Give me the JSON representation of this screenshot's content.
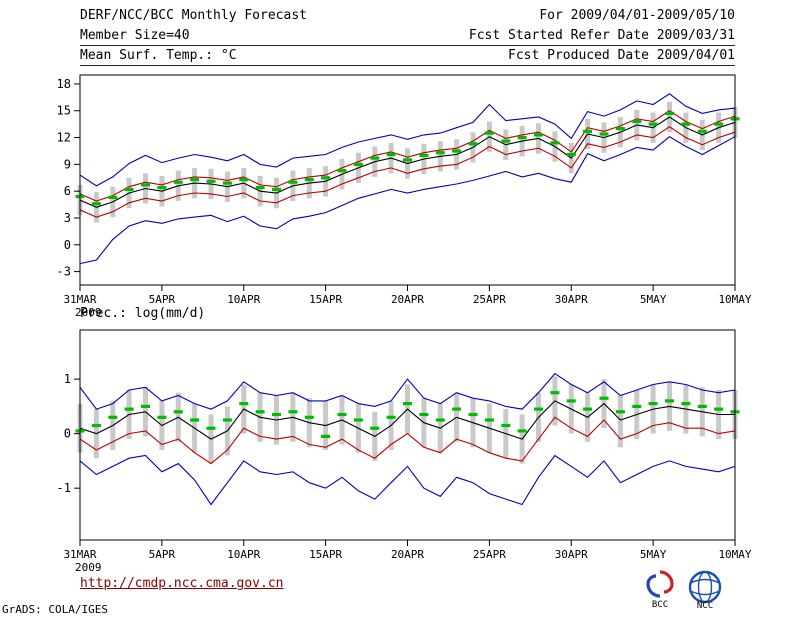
{
  "header": {
    "title": "DERF/NCC/BCC Monthly Forecast",
    "member_size": "Member Size=40",
    "for_range": "For 2009/04/01-2009/05/10",
    "refer_date": "Fcst Started Refer Date 2009/03/31",
    "produced_date": "Fcst Produced Date 2009/04/01"
  },
  "footer": {
    "url": "http://cmdp.ncc.cma.gov.cn",
    "grads_credit": "GrADS: COLA/IGES",
    "logos": [
      {
        "label": "BCC"
      },
      {
        "label": "NCC"
      }
    ]
  },
  "colors": {
    "envelope_line": "#0000bb",
    "quartile_line": "#bb0000",
    "mean_line": "#000000",
    "obs_marker": "#00bb00",
    "spread_bar": "#c9c9c9",
    "url_text": "#8b0000",
    "frame": "#000000"
  },
  "chart_data": [
    {
      "type": "line",
      "name": "temperature-chart",
      "title": "Mean Surf. Temp.: °C",
      "x_tick_labels": [
        "31MAR",
        "5APR",
        "10APR",
        "15APR",
        "20APR",
        "25APR",
        "30APR",
        "5MAY",
        "10MAY"
      ],
      "x_tick_days": [
        0,
        5,
        10,
        15,
        20,
        25,
        30,
        35,
        40
      ],
      "x_sub_label": "2009",
      "ylim": [
        -4.5,
        19.0
      ],
      "yticks": [
        -3,
        0,
        3,
        6,
        9,
        12,
        15,
        18
      ],
      "grid": "off",
      "series": [
        {
          "name": "ensemble-max",
          "color": "#0000bb",
          "values": [
            7.8,
            6.6,
            7.6,
            9.1,
            10.0,
            9.2,
            9.7,
            10.1,
            9.8,
            9.4,
            10.1,
            9.0,
            8.7,
            9.7,
            9.9,
            10.1,
            10.9,
            11.5,
            11.9,
            12.3,
            11.8,
            12.3,
            12.5,
            13.1,
            13.7,
            15.7,
            13.9,
            14.1,
            14.3,
            13.5,
            11.9,
            14.9,
            14.4,
            15.1,
            16.1,
            15.7,
            16.9,
            15.5,
            14.7,
            15.1,
            15.3
          ]
        },
        {
          "name": "upper-spread",
          "color": "#bb0000",
          "values": [
            5.7,
            4.9,
            5.5,
            6.5,
            7.0,
            6.7,
            7.3,
            7.6,
            7.5,
            7.2,
            7.6,
            6.7,
            6.5,
            7.3,
            7.6,
            7.8,
            8.6,
            9.3,
            10.0,
            10.4,
            9.8,
            10.3,
            10.6,
            10.8,
            11.6,
            12.8,
            11.9,
            12.3,
            12.6,
            11.7,
            10.4,
            13.1,
            12.7,
            13.3,
            14.1,
            13.8,
            15.0,
            13.8,
            13.0,
            13.8,
            14.4
          ]
        },
        {
          "name": "ensemble-mean",
          "color": "#000000",
          "values": [
            5.0,
            4.2,
            4.8,
            5.8,
            6.3,
            6.0,
            6.6,
            6.9,
            6.8,
            6.5,
            6.9,
            6.0,
            5.8,
            6.6,
            6.9,
            7.1,
            7.9,
            8.6,
            9.3,
            9.7,
            9.1,
            9.6,
            9.9,
            10.1,
            10.9,
            12.1,
            11.2,
            11.6,
            11.9,
            11.0,
            9.7,
            12.4,
            12.0,
            12.6,
            13.4,
            13.1,
            14.3,
            13.1,
            12.3,
            13.1,
            13.7
          ]
        },
        {
          "name": "lower-spread",
          "color": "#bb0000",
          "values": [
            3.9,
            3.1,
            3.7,
            4.7,
            5.2,
            4.9,
            5.5,
            5.8,
            5.7,
            5.4,
            5.8,
            4.9,
            4.7,
            5.5,
            5.8,
            6.0,
            6.8,
            7.5,
            8.2,
            8.6,
            8.0,
            8.5,
            8.8,
            9.0,
            9.8,
            11.0,
            10.1,
            10.5,
            10.8,
            9.9,
            8.6,
            11.3,
            10.9,
            11.5,
            12.3,
            12.0,
            13.2,
            12.0,
            11.2,
            12.0,
            12.6
          ]
        },
        {
          "name": "ensemble-min",
          "color": "#0000bb",
          "values": [
            -2.1,
            -1.7,
            0.6,
            2.1,
            2.7,
            2.4,
            2.9,
            3.1,
            3.3,
            2.6,
            3.2,
            2.1,
            1.8,
            2.9,
            3.2,
            3.6,
            4.4,
            5.2,
            5.7,
            6.2,
            5.8,
            6.2,
            6.5,
            6.8,
            7.2,
            7.7,
            8.2,
            7.6,
            8.0,
            7.4,
            7.0,
            10.2,
            9.4,
            10.1,
            10.9,
            10.6,
            12.1,
            11.0,
            10.1,
            11.1,
            12.1
          ]
        }
      ],
      "markers": {
        "name": "observation-dash",
        "color": "#00bb00",
        "values": [
          5.4,
          4.6,
          5.3,
          6.2,
          6.7,
          6.4,
          7.0,
          7.3,
          7.1,
          6.9,
          7.3,
          6.4,
          6.2,
          7.0,
          7.3,
          7.5,
          8.3,
          9.0,
          9.7,
          10.1,
          9.5,
          10.0,
          10.3,
          10.5,
          11.3,
          12.5,
          11.6,
          12.0,
          12.3,
          11.4,
          10.1,
          12.7,
          12.4,
          13.0,
          13.8,
          13.5,
          14.7,
          13.5,
          12.7,
          13.5,
          14.1
        ]
      },
      "bars": {
        "name": "ensemble-spread-bar",
        "color": "#c9c9c9",
        "hi": [
          6.7,
          5.9,
          6.5,
          7.5,
          8.0,
          7.7,
          8.3,
          8.6,
          8.5,
          8.2,
          8.6,
          7.7,
          7.5,
          8.3,
          8.6,
          8.8,
          9.6,
          10.3,
          11.0,
          11.4,
          10.8,
          11.3,
          11.6,
          11.8,
          12.6,
          13.8,
          12.9,
          13.3,
          13.6,
          12.7,
          11.4,
          14.1,
          13.7,
          14.3,
          15.1,
          14.8,
          16.0,
          14.8,
          14.0,
          14.8,
          15.4
        ],
        "lo": [
          3.3,
          2.5,
          3.1,
          4.1,
          4.6,
          4.3,
          4.9,
          5.2,
          5.1,
          4.8,
          5.2,
          4.3,
          4.1,
          4.9,
          5.2,
          5.4,
          6.2,
          6.9,
          7.6,
          8.0,
          7.4,
          7.9,
          8.2,
          8.4,
          9.2,
          10.4,
          9.5,
          9.9,
          10.2,
          9.3,
          8.0,
          10.7,
          10.3,
          10.9,
          11.7,
          11.4,
          12.6,
          11.4,
          10.6,
          11.4,
          12.0
        ]
      }
    },
    {
      "type": "line",
      "name": "precipitation-chart",
      "title": "Prec.: log(mm/d)",
      "x_tick_labels": [
        "31MAR",
        "5APR",
        "10APR",
        "15APR",
        "20APR",
        "25APR",
        "30APR",
        "5MAY",
        "10MAY"
      ],
      "x_tick_days": [
        0,
        5,
        10,
        15,
        20,
        25,
        30,
        35,
        40
      ],
      "x_sub_label": "2009",
      "ylim": [
        -1.95,
        1.9
      ],
      "yticks": [
        -1,
        0,
        1
      ],
      "grid": "off",
      "series": [
        {
          "name": "ensemble-max",
          "color": "#0000bb",
          "values": [
            0.85,
            0.45,
            0.55,
            0.8,
            0.85,
            0.6,
            0.7,
            0.55,
            0.45,
            0.6,
            0.95,
            0.75,
            0.7,
            0.75,
            0.6,
            0.6,
            0.7,
            0.55,
            0.5,
            0.6,
            1.0,
            0.65,
            0.55,
            0.75,
            0.65,
            0.6,
            0.5,
            0.45,
            0.75,
            1.1,
            0.9,
            0.75,
            0.95,
            0.7,
            0.8,
            0.9,
            0.95,
            0.9,
            0.8,
            0.75,
            0.8
          ]
        },
        {
          "name": "ensemble-mean",
          "color": "#000000",
          "values": [
            0.1,
            0.0,
            0.15,
            0.35,
            0.4,
            0.15,
            0.3,
            0.1,
            -0.1,
            0.05,
            0.45,
            0.3,
            0.25,
            0.3,
            0.2,
            0.15,
            0.25,
            0.1,
            -0.05,
            0.15,
            0.45,
            0.2,
            0.1,
            0.3,
            0.2,
            0.1,
            0.0,
            -0.1,
            0.3,
            0.6,
            0.45,
            0.3,
            0.55,
            0.25,
            0.35,
            0.45,
            0.5,
            0.45,
            0.4,
            0.35,
            0.35
          ]
        },
        {
          "name": "lower-spread",
          "color": "#bb0000",
          "values": [
            -0.1,
            -0.3,
            -0.15,
            0.0,
            0.05,
            -0.2,
            -0.1,
            -0.35,
            -0.55,
            -0.3,
            0.1,
            -0.05,
            -0.1,
            -0.05,
            -0.2,
            -0.25,
            -0.1,
            -0.3,
            -0.45,
            -0.2,
            0.0,
            -0.25,
            -0.35,
            -0.1,
            -0.2,
            -0.35,
            -0.45,
            -0.5,
            -0.1,
            0.3,
            0.1,
            -0.05,
            0.25,
            -0.1,
            0.0,
            0.15,
            0.2,
            0.1,
            0.1,
            0.0,
            0.05
          ]
        },
        {
          "name": "ensemble-min",
          "color": "#0000bb",
          "values": [
            -0.5,
            -0.75,
            -0.6,
            -0.45,
            -0.4,
            -0.7,
            -0.55,
            -0.85,
            -1.3,
            -0.9,
            -0.5,
            -0.7,
            -0.75,
            -0.7,
            -0.9,
            -1.0,
            -0.8,
            -1.05,
            -1.2,
            -0.9,
            -0.6,
            -1.0,
            -1.15,
            -0.8,
            -0.9,
            -1.1,
            -1.2,
            -1.3,
            -0.8,
            -0.4,
            -0.6,
            -0.8,
            -0.5,
            -0.9,
            -0.75,
            -0.6,
            -0.5,
            -0.6,
            -0.65,
            -0.7,
            -0.6
          ]
        }
      ],
      "markers": {
        "name": "observation-dash",
        "color": "#00bb00",
        "values": [
          0.05,
          0.15,
          0.3,
          0.45,
          0.5,
          0.3,
          0.4,
          0.25,
          0.1,
          0.25,
          0.55,
          0.4,
          0.35,
          0.4,
          0.3,
          -0.05,
          0.35,
          0.25,
          0.1,
          0.3,
          0.55,
          0.35,
          0.25,
          0.45,
          0.35,
          0.25,
          0.15,
          0.05,
          0.45,
          0.75,
          0.6,
          0.45,
          0.65,
          0.4,
          0.5,
          0.55,
          0.6,
          0.55,
          0.5,
          0.45,
          0.4
        ]
      },
      "bars": {
        "name": "ensemble-spread-bar",
        "color": "#c9c9c9",
        "hi": [
          0.55,
          0.45,
          0.6,
          0.8,
          0.85,
          0.6,
          0.75,
          0.55,
          0.35,
          0.5,
          0.9,
          0.75,
          0.7,
          0.75,
          0.65,
          0.6,
          0.7,
          0.55,
          0.4,
          0.6,
          0.9,
          0.65,
          0.55,
          0.75,
          0.65,
          0.55,
          0.45,
          0.35,
          0.75,
          1.05,
          0.9,
          0.75,
          1.0,
          0.7,
          0.8,
          0.9,
          0.95,
          0.9,
          0.85,
          0.8,
          0.8
        ],
        "lo": [
          -0.35,
          -0.45,
          -0.3,
          -0.1,
          -0.05,
          -0.3,
          -0.15,
          -0.35,
          -0.55,
          -0.4,
          0.0,
          -0.15,
          -0.2,
          -0.15,
          -0.25,
          -0.3,
          -0.2,
          -0.35,
          -0.5,
          -0.3,
          0.0,
          -0.25,
          -0.35,
          -0.15,
          -0.25,
          -0.35,
          -0.45,
          -0.55,
          -0.15,
          0.15,
          0.0,
          -0.15,
          0.1,
          -0.25,
          -0.1,
          0.0,
          0.05,
          0.0,
          -0.05,
          -0.1,
          -0.1
        ]
      }
    }
  ]
}
